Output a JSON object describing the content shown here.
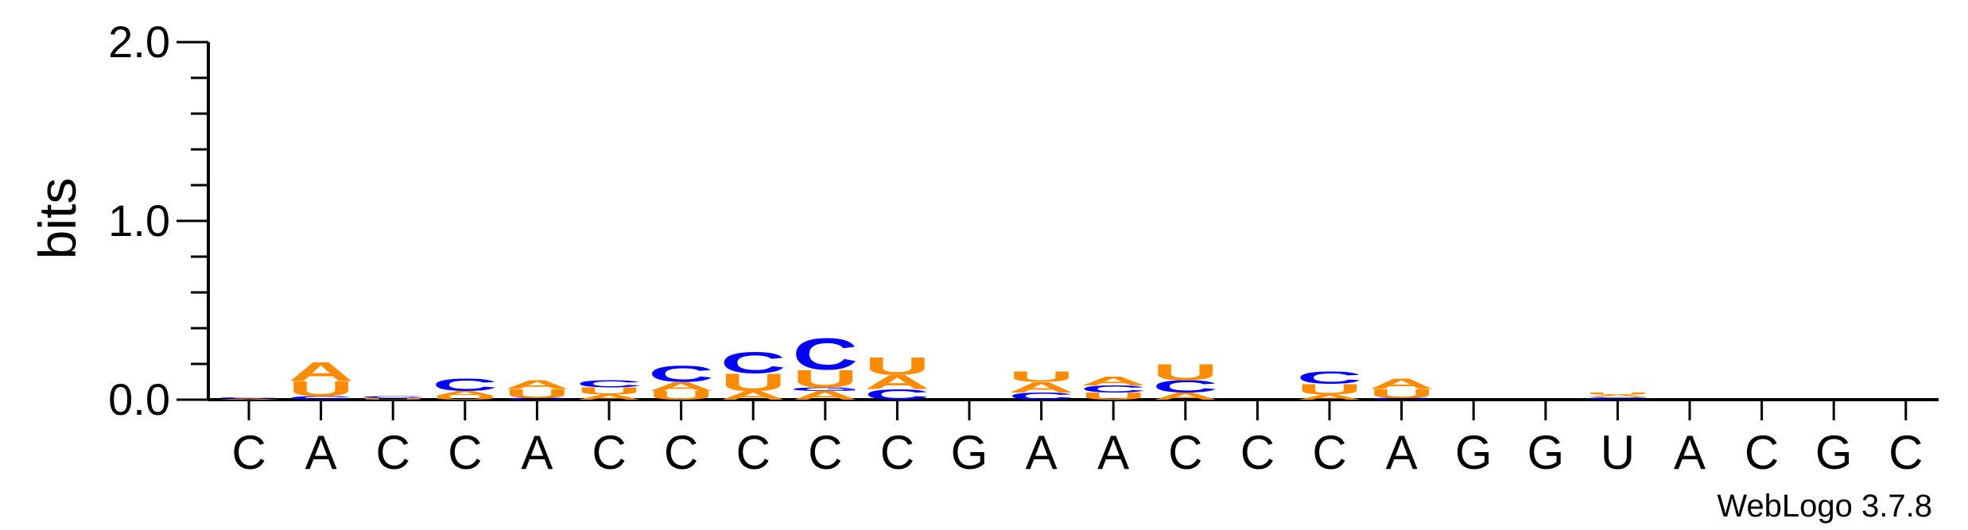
{
  "chart_data": {
    "type": "sequence-logo",
    "ylabel": "bits",
    "ylim": [
      0,
      2.0
    ],
    "y_ticks": [
      {
        "value": 0.0,
        "label": "0.0"
      },
      {
        "value": 1.0,
        "label": "1.0"
      },
      {
        "value": 2.0,
        "label": "2.0"
      }
    ],
    "x_labels": [
      "C",
      "A",
      "C",
      "C",
      "A",
      "C",
      "C",
      "C",
      "C",
      "C",
      "G",
      "A",
      "A",
      "C",
      "C",
      "C",
      "A",
      "G",
      "G",
      "U",
      "A",
      "C",
      "G",
      "C"
    ],
    "colors": {
      "A": "#ff8c00",
      "U": "#ff8c00",
      "C": "#0000ff",
      "G": "#0000ff"
    },
    "positions": [
      {
        "stack": [
          {
            "letter": "A",
            "height": 0.006
          },
          {
            "letter": "C",
            "height": 0.006
          }
        ]
      },
      {
        "stack": [
          {
            "letter": "C",
            "height": 0.02
          },
          {
            "letter": "U",
            "height": 0.085
          },
          {
            "letter": "A",
            "height": 0.11
          }
        ]
      },
      {
        "stack": [
          {
            "letter": "U",
            "height": 0.008
          },
          {
            "letter": "C",
            "height": 0.01
          }
        ]
      },
      {
        "stack": [
          {
            "letter": "U",
            "height": 0.02
          },
          {
            "letter": "A",
            "height": 0.03
          },
          {
            "letter": "C",
            "height": 0.07
          }
        ]
      },
      {
        "stack": [
          {
            "letter": "C",
            "height": 0.01
          },
          {
            "letter": "U",
            "height": 0.05
          },
          {
            "letter": "A",
            "height": 0.05
          }
        ]
      },
      {
        "stack": [
          {
            "letter": "A",
            "height": 0.03
          },
          {
            "letter": "U",
            "height": 0.04
          },
          {
            "letter": "C",
            "height": 0.04
          }
        ]
      },
      {
        "stack": [
          {
            "letter": "U",
            "height": 0.05
          },
          {
            "letter": "A",
            "height": 0.05
          },
          {
            "letter": "C",
            "height": 0.09
          }
        ]
      },
      {
        "stack": [
          {
            "letter": "A",
            "height": 0.05
          },
          {
            "letter": "U",
            "height": 0.1
          },
          {
            "letter": "C",
            "height": 0.12
          }
        ]
      },
      {
        "stack": [
          {
            "letter": "A",
            "height": 0.05
          },
          {
            "letter": "G",
            "height": 0.02
          },
          {
            "letter": "U",
            "height": 0.1
          },
          {
            "letter": "C",
            "height": 0.18
          }
        ]
      },
      {
        "stack": [
          {
            "letter": "C",
            "height": 0.06
          },
          {
            "letter": "A",
            "height": 0.08
          },
          {
            "letter": "U",
            "height": 0.1
          }
        ]
      },
      {
        "stack": []
      },
      {
        "stack": [
          {
            "letter": "C",
            "height": 0.04
          },
          {
            "letter": "A",
            "height": 0.06
          },
          {
            "letter": "U",
            "height": 0.06
          }
        ]
      },
      {
        "stack": [
          {
            "letter": "U",
            "height": 0.04
          },
          {
            "letter": "C",
            "height": 0.04
          },
          {
            "letter": "A",
            "height": 0.05
          }
        ]
      },
      {
        "stack": [
          {
            "letter": "A",
            "height": 0.04
          },
          {
            "letter": "C",
            "height": 0.07
          },
          {
            "letter": "U",
            "height": 0.09
          }
        ]
      },
      {
        "stack": []
      },
      {
        "stack": [
          {
            "letter": "A",
            "height": 0.03
          },
          {
            "letter": "U",
            "height": 0.06
          },
          {
            "letter": "C",
            "height": 0.07
          }
        ]
      },
      {
        "stack": [
          {
            "letter": "C",
            "height": 0.01
          },
          {
            "letter": "U",
            "height": 0.05
          },
          {
            "letter": "A",
            "height": 0.06
          }
        ]
      },
      {
        "stack": []
      },
      {
        "stack": []
      },
      {
        "stack": [
          {
            "letter": "C",
            "height": 0.015
          },
          {
            "letter": "A",
            "height": 0.015
          },
          {
            "letter": "U",
            "height": 0.01
          }
        ]
      },
      {
        "stack": []
      },
      {
        "stack": []
      },
      {
        "stack": []
      },
      {
        "stack": []
      }
    ]
  },
  "credit": "WebLogo 3.7.8"
}
